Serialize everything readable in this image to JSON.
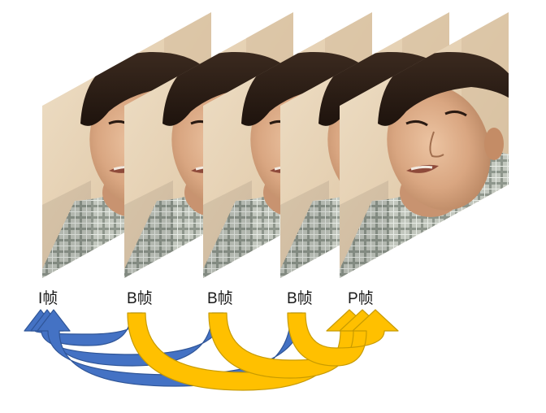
{
  "frames": [
    {
      "type": "I",
      "label": "I帧"
    },
    {
      "type": "B",
      "label": "B帧"
    },
    {
      "type": "B",
      "label": "B帧"
    },
    {
      "type": "B",
      "label": "B帧"
    },
    {
      "type": "P",
      "label": "P帧"
    }
  ],
  "arrows": [
    {
      "from": 1,
      "to": 0,
      "kind": "backward",
      "color": "#4472C4"
    },
    {
      "from": 2,
      "to": 0,
      "kind": "backward",
      "color": "#4472C4"
    },
    {
      "from": 3,
      "to": 0,
      "kind": "backward",
      "color": "#4472C4"
    },
    {
      "from": 1,
      "to": 4,
      "kind": "forward",
      "color": "#FFC000"
    },
    {
      "from": 2,
      "to": 4,
      "kind": "forward",
      "color": "#FFC000"
    },
    {
      "from": 3,
      "to": 4,
      "kind": "forward",
      "color": "#FFC000"
    }
  ],
  "colors": {
    "backward_arrow": "#4472C4",
    "backward_arrow_edge": "#2F5597",
    "forward_arrow": "#FFC000",
    "forward_arrow_shade": "#C89B00",
    "skin": "#E0B28F",
    "hair": "#2A1C14",
    "wall": "#E8D4B8",
    "shirt": "#B9BFB6"
  },
  "icons": {
    "video_frame": "face-video-frame-icon"
  }
}
